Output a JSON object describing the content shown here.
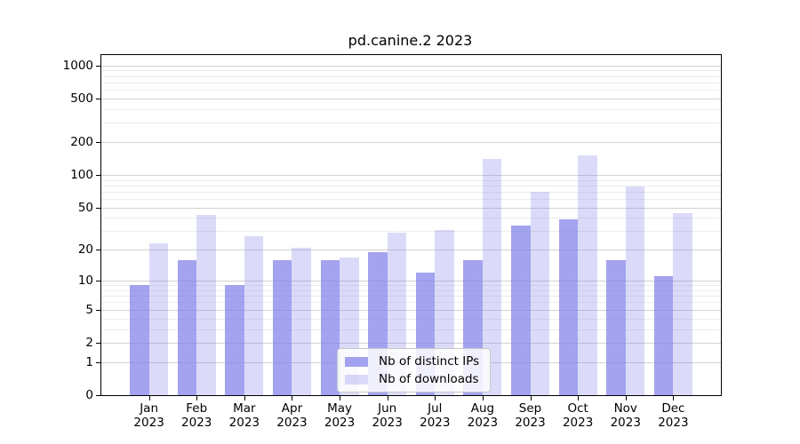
{
  "window": {
    "title": "pd.canine.2 2023"
  },
  "chart_data": {
    "type": "bar",
    "title": "pd.canine.2 2023",
    "categories": [
      "Jan",
      "Feb",
      "Mar",
      "Apr",
      "May",
      "Jun",
      "Jul",
      "Aug",
      "Sep",
      "Oct",
      "Nov",
      "Dec"
    ],
    "xtick_year": "2023",
    "series": [
      {
        "name": "Nb of distinct IPs",
        "color": "127,127,234",
        "alpha": 0.72,
        "values": [
          9,
          16,
          9,
          16,
          16,
          19,
          12,
          16,
          34,
          39,
          16,
          11
        ]
      },
      {
        "name": "Nb of downloads",
        "color": "127,127,234",
        "alpha": 0.28,
        "values": [
          23,
          43,
          27,
          21,
          17,
          29,
          31,
          140,
          70,
          150,
          78,
          44
        ]
      }
    ],
    "xlabel": "",
    "ylabel": "",
    "yscale": "log1p",
    "ylim": [
      0,
      1244
    ],
    "yticks": [
      0,
      1,
      2,
      5,
      10,
      20,
      50,
      100,
      200,
      500,
      1000
    ],
    "minor_yticks": [
      3,
      4,
      6,
      7,
      8,
      9,
      30,
      40,
      60,
      70,
      80,
      90,
      300,
      400,
      600,
      700,
      800,
      900
    ],
    "grid": true,
    "legend_position": "lower center",
    "colors": {
      "spine": "#000000",
      "major_grid": "#d2d2d2",
      "minor_grid": "#ececec",
      "bar_base": "#7f7fea"
    }
  }
}
